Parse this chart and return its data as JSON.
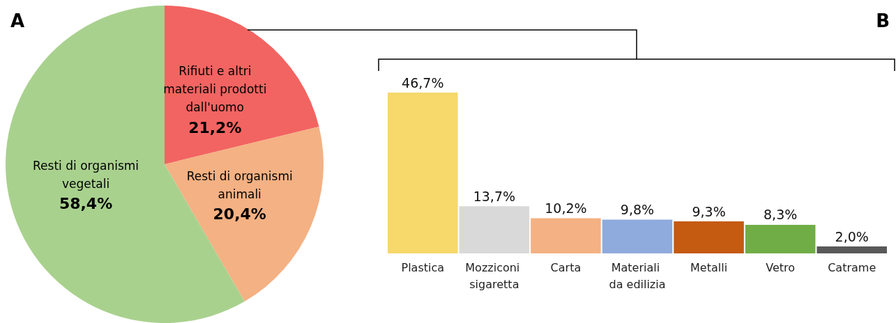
{
  "chart_data": [
    {
      "type": "pie",
      "title": "A",
      "categories": [
        "Rifiuti e altri materiali prodotti dall'uomo",
        "Resti di organismi animali",
        "Resti di organismi vegetali"
      ],
      "values": [
        21.2,
        20.4,
        58.4
      ],
      "value_labels": [
        "21,2%",
        "20,4%",
        "58,4%"
      ],
      "colors": [
        "#f26461",
        "#f4b183",
        "#a9d18e"
      ],
      "legend": false
    },
    {
      "type": "bar",
      "title": "B",
      "categories": [
        "Plastica",
        "Mozziconi sigaretta",
        "Carta",
        "Materiali da edilizia",
        "Metalli",
        "Vetro",
        "Catrame"
      ],
      "values": [
        46.7,
        13.7,
        10.2,
        9.8,
        9.3,
        8.3,
        2.0
      ],
      "value_labels": [
        "46,7%",
        "13,7%",
        "10,2%",
        "9,8%",
        "9,3%",
        "8,3%",
        "2,0%"
      ],
      "colors": [
        "#f6d86b",
        "#d9d9d9",
        "#f4b183",
        "#8faadc",
        "#c55a11",
        "#70ad47",
        "#595959"
      ],
      "legend": false
    }
  ]
}
